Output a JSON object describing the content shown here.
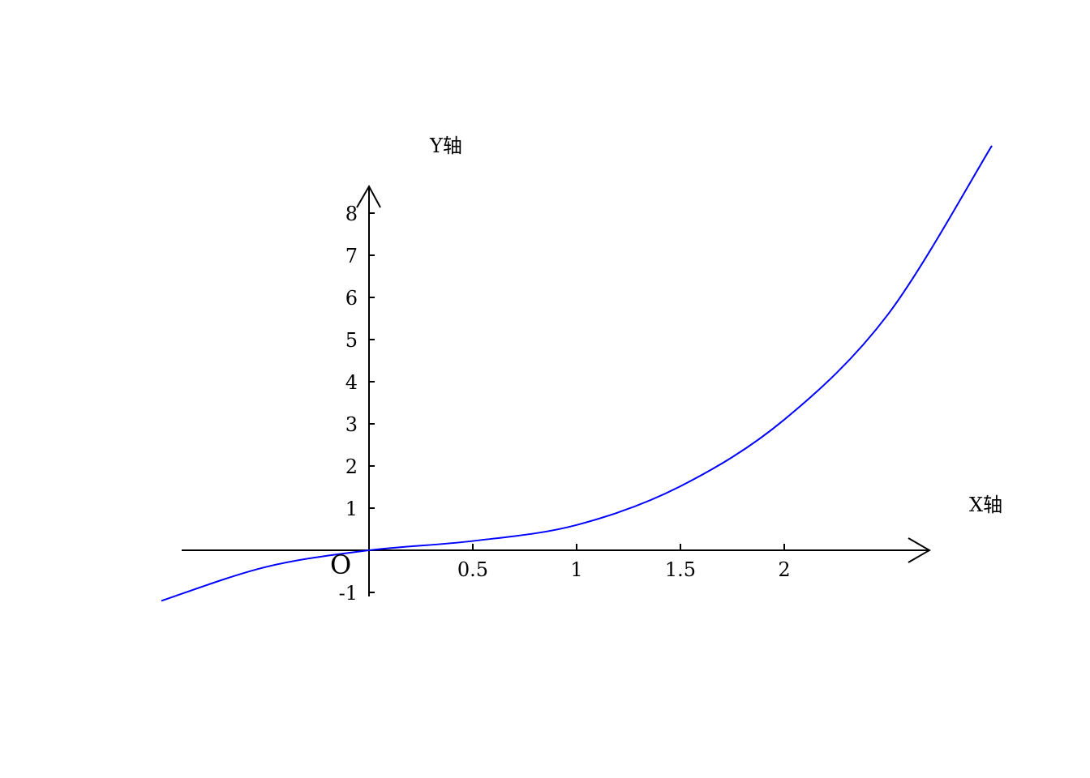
{
  "chart_data": {
    "type": "line",
    "title": "",
    "xlabel": "X轴",
    "ylabel": "Y轴",
    "origin_label": "O",
    "xlim": [
      -1,
      3
    ],
    "ylim": [
      -1.2,
      9.6
    ],
    "x_ticks": [
      0.5,
      1,
      1.5,
      2
    ],
    "x_tick_labels": [
      "0.5",
      "1",
      "1.5",
      "2"
    ],
    "y_ticks": [
      -1,
      1,
      2,
      3,
      4,
      5,
      6,
      7,
      8
    ],
    "y_tick_labels": [
      "-1",
      "1",
      "2",
      "3",
      "4",
      "5",
      "6",
      "7",
      "8"
    ],
    "grid": false,
    "series": [
      {
        "color": "#0000ff",
        "x": [
          -1,
          -0.5,
          0,
          0.5,
          1,
          1.5,
          2,
          2.5,
          3
        ],
        "y": [
          -1.2,
          -0.4,
          0,
          0.22,
          0.6,
          1.52,
          3.1,
          5.6,
          9.6
        ]
      }
    ]
  }
}
